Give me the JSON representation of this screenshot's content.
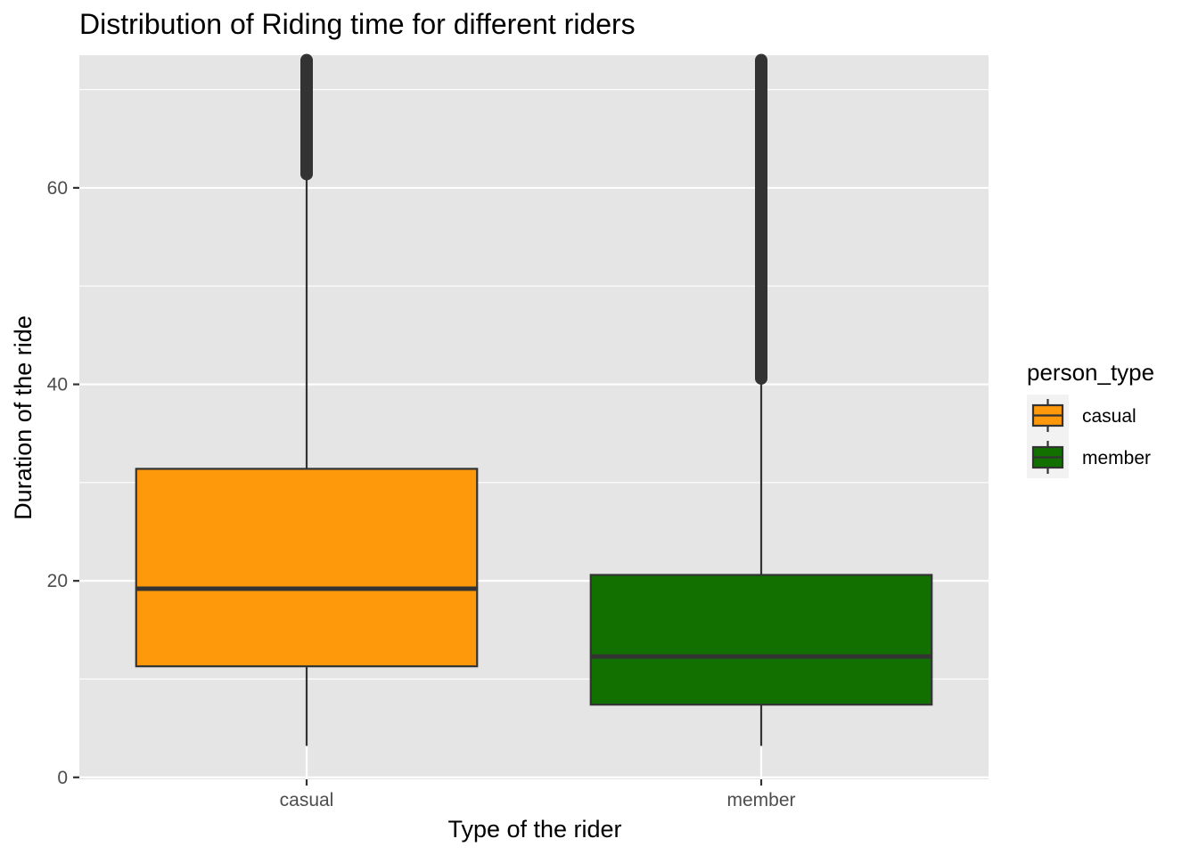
{
  "chart_data": {
    "type": "boxplot",
    "title": "Distribution of Riding time for different riders",
    "xlabel": "Type of the rider",
    "ylabel": "Duration of the ride",
    "ylim": [
      -0.2,
      73.5
    ],
    "yticks": [
      0,
      20,
      40,
      60
    ],
    "ytick_labels": [
      "0",
      "20",
      "40",
      "60"
    ],
    "categories": [
      "casual",
      "member"
    ],
    "grid": true,
    "legend": {
      "title": "person_type",
      "position": "right",
      "entries": [
        "casual",
        "member"
      ]
    },
    "boxes": [
      {
        "category": "casual",
        "whisker_low": 3.2,
        "q1": 11.3,
        "median": 19.2,
        "q3": 31.4,
        "whisker_high": 61.4,
        "outliers_from": 61.4,
        "outliers_to": 73.0,
        "color": "#ff990c"
      },
      {
        "category": "member",
        "whisker_low": 3.2,
        "q1": 7.4,
        "median": 12.3,
        "q3": 20.6,
        "whisker_high": 40.6,
        "outliers_from": 40.6,
        "outliers_to": 73.0,
        "color": "#117000"
      }
    ]
  }
}
